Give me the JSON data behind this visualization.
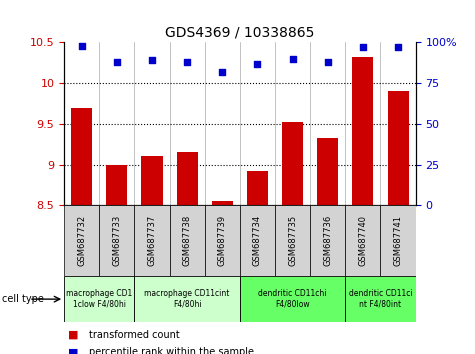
{
  "title": "GDS4369 / 10338865",
  "samples": [
    "GSM687732",
    "GSM687733",
    "GSM687737",
    "GSM687738",
    "GSM687739",
    "GSM687734",
    "GSM687735",
    "GSM687736",
    "GSM687740",
    "GSM687741"
  ],
  "bar_values": [
    9.7,
    9.0,
    9.1,
    9.15,
    8.55,
    8.92,
    9.52,
    9.33,
    10.32,
    9.9
  ],
  "scatter_values": [
    98,
    88,
    89,
    88,
    82,
    87,
    90,
    88,
    97,
    97
  ],
  "ylim_left": [
    8.5,
    10.5
  ],
  "ylim_right": [
    0,
    100
  ],
  "yticks_left": [
    8.5,
    9.0,
    9.5,
    10.0,
    10.5
  ],
  "yticks_right": [
    0,
    25,
    50,
    75,
    100
  ],
  "bar_color": "#cc0000",
  "scatter_color": "#0000cc",
  "cell_types": [
    {
      "label": "macrophage CD1\n1clow F4/80hi",
      "start": 0,
      "end": 2,
      "color": "#ccffcc"
    },
    {
      "label": "macrophage CD11cint\nF4/80hi",
      "start": 2,
      "end": 5,
      "color": "#ccffcc"
    },
    {
      "label": "dendritic CD11chi\nF4/80low",
      "start": 5,
      "end": 8,
      "color": "#66ff66"
    },
    {
      "label": "dendritic CD11ci\nnt F4/80int",
      "start": 8,
      "end": 10,
      "color": "#66ff66"
    }
  ],
  "legend_bar_label": "transformed count",
  "legend_scatter_label": "percentile rank within the sample",
  "cell_type_label": "cell type",
  "bar_color_legend": "#cc0000",
  "scatter_color_legend": "#0000cc",
  "xlabel_color": "#cc0000",
  "ylabel_right_color": "#0000cc",
  "gridline_yticks": [
    9.0,
    9.5,
    10.0
  ],
  "bar_width": 0.6
}
